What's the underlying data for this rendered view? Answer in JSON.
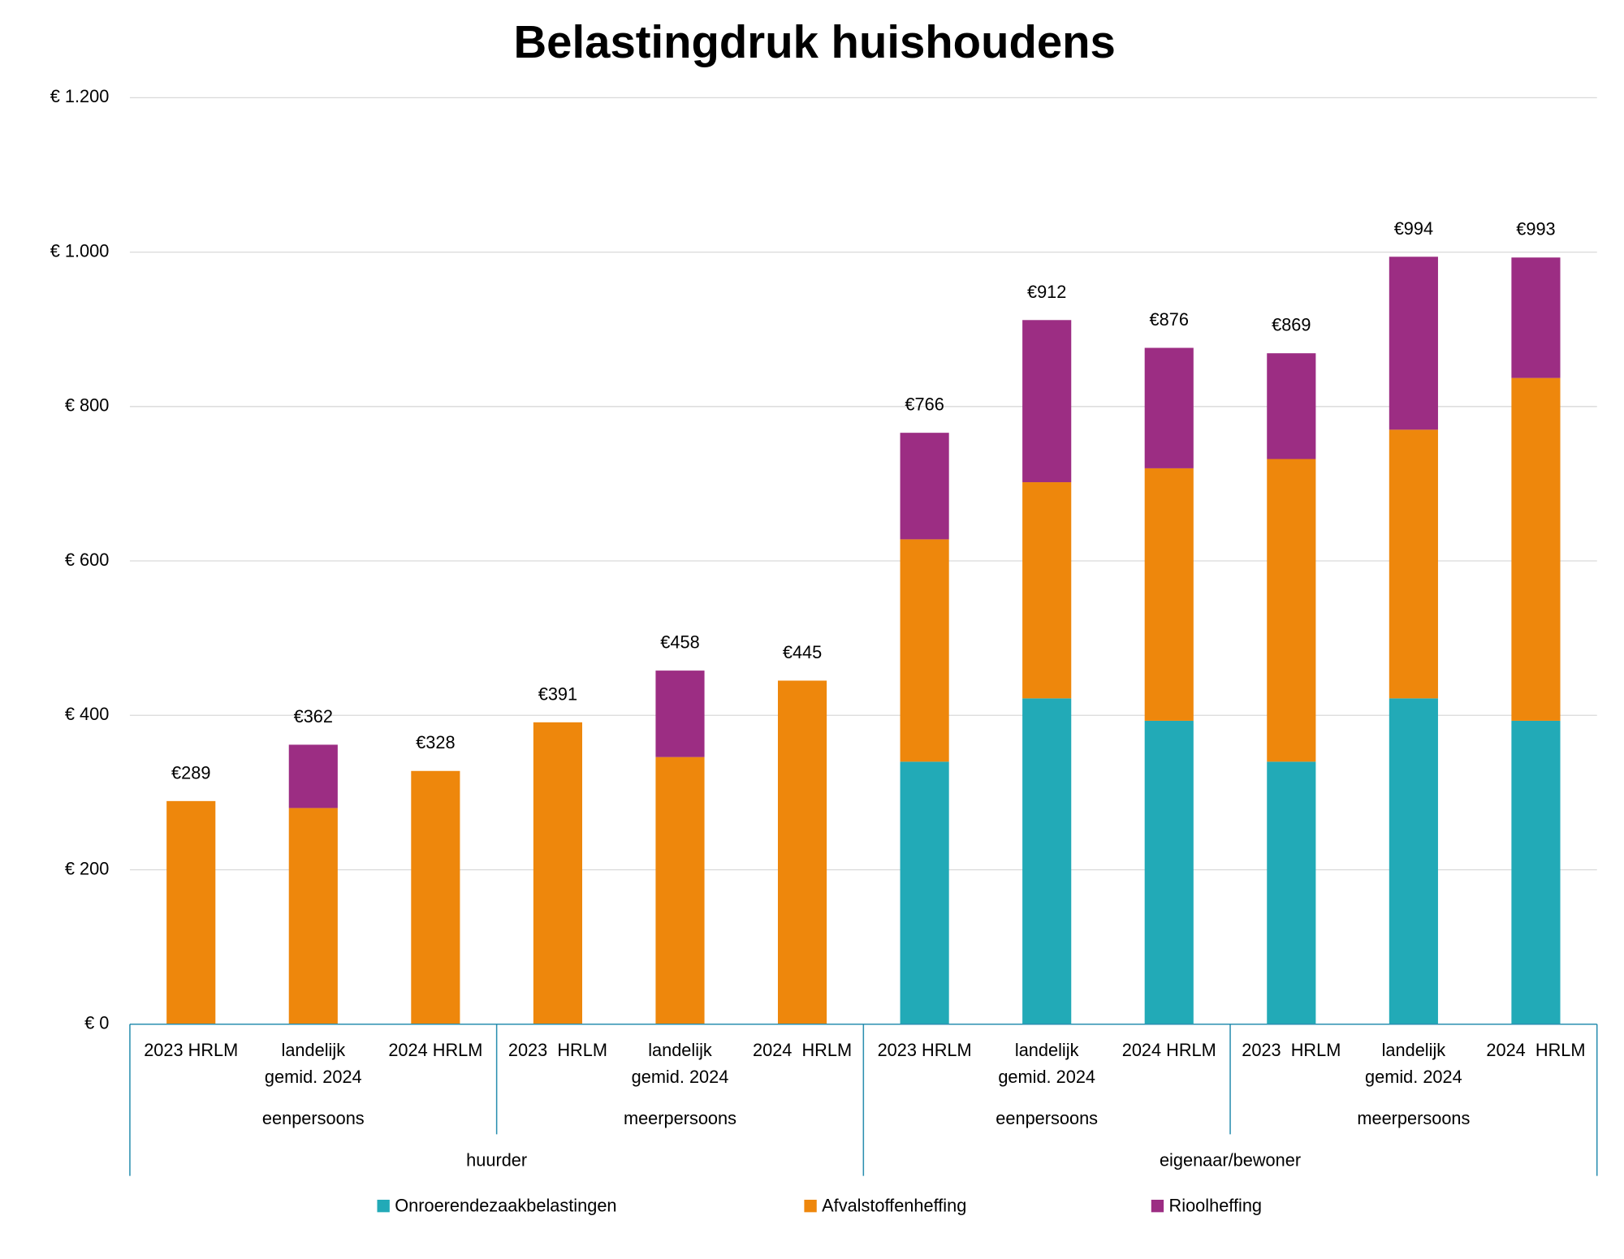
{
  "chart_data": {
    "type": "stacked_bar",
    "title": "Belastingdruk huishoudens",
    "categories": [
      [
        "2023 HRLM"
      ],
      [
        "landelijk",
        "gemid. 2024"
      ],
      [
        "2024 HRLM"
      ],
      [
        "2023  HRLM"
      ],
      [
        "landelijk",
        "gemid. 2024"
      ],
      [
        "2024  HRLM"
      ],
      [
        "2023 HRLM"
      ],
      [
        "landelijk",
        "gemid. 2024"
      ],
      [
        "2024 HRLM"
      ],
      [
        "2023  HRLM"
      ],
      [
        "landelijk",
        "gemid. 2024"
      ],
      [
        "2024  HRLM"
      ]
    ],
    "groups": [
      "eenpersoons",
      "meerpersoons",
      "eenpersoons",
      "meerpersoons"
    ],
    "supergroups": [
      "huurder",
      "eigenaar/bewoner"
    ],
    "series": [
      {
        "name": "Onroerendezaakbelastingen",
        "color": "#22aab7",
        "values": [
          0,
          0,
          0,
          0,
          0,
          0,
          340,
          422,
          393,
          340,
          422,
          393
        ]
      },
      {
        "name": "Afvalstoffenheffing",
        "color": "#ee870c",
        "values": [
          289,
          280,
          328,
          391,
          346,
          445,
          288,
          280,
          327,
          392,
          348,
          444
        ]
      },
      {
        "name": "Rioolheffing",
        "color": "#9c2d83",
        "values": [
          0,
          82,
          0,
          0,
          112,
          0,
          138,
          210,
          156,
          137,
          224,
          156
        ]
      }
    ],
    "totals": [
      289,
      362,
      328,
      391,
      458,
      445,
      766,
      912,
      876,
      869,
      994,
      993
    ],
    "total_labels": [
      "€289",
      "€362",
      "€328",
      "€391",
      "€458",
      "€445",
      "€766",
      "€912",
      "€876",
      "€869",
      "€994",
      "€993"
    ],
    "ylim": [
      0,
      1200
    ],
    "yticks": [
      {
        "value": 0,
        "label": "€ 0"
      },
      {
        "value": 200,
        "label": "€ 200"
      },
      {
        "value": 400,
        "label": "€ 400"
      },
      {
        "value": 600,
        "label": "€ 600"
      },
      {
        "value": 800,
        "label": "€ 800"
      },
      {
        "value": 1000,
        "label": "€ 1.000"
      },
      {
        "value": 1200,
        "label": "€ 1.200"
      }
    ],
    "grid": true,
    "legend": "bottom"
  }
}
